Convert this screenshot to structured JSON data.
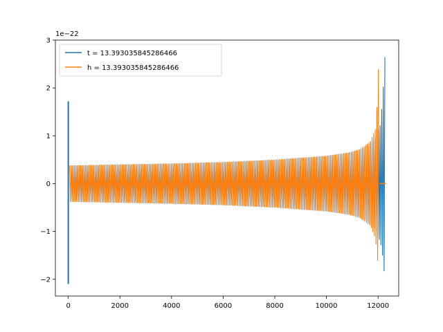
{
  "chart_data": {
    "type": "line",
    "title": "",
    "xlabel": "",
    "ylabel": "",
    "offset_text": "1e−22",
    "xlim": [
      -500,
      12800
    ],
    "ylim": [
      -2.35,
      3.0
    ],
    "x_ticks": [
      0,
      2000,
      4000,
      6000,
      8000,
      10000,
      12000
    ],
    "x_tick_labels": [
      "0",
      "2000",
      "4000",
      "6000",
      "8000",
      "10000",
      "12000"
    ],
    "y_ticks": [
      -2,
      -1,
      0,
      1,
      2,
      3
    ],
    "y_tick_labels": [
      "−2",
      "−1",
      "0",
      "1",
      "2",
      "3"
    ],
    "grid": false,
    "legend_placement": "top-left",
    "series": [
      {
        "name": "t = 13.393035845286466",
        "color": "#1f77b4",
        "spike_at_x": 0,
        "spike_range": [
          -2.1,
          1.72
        ],
        "envelope_x": [
          100,
          2000,
          4000,
          6000,
          8000,
          10000,
          11000,
          11500,
          11900,
          12100,
          12200,
          12280
        ],
        "envelope_upper": [
          0.38,
          0.4,
          0.42,
          0.45,
          0.5,
          0.58,
          0.66,
          0.76,
          0.95,
          1.25,
          2.0,
          2.8
        ],
        "envelope_lower": [
          -0.38,
          -0.4,
          -0.42,
          -0.45,
          -0.5,
          -0.58,
          -0.66,
          -0.76,
          -0.95,
          -1.25,
          -1.6,
          -2.15
        ],
        "end_x": 12300
      },
      {
        "name": "h = 13.393035845286466",
        "color": "#ff7f0e",
        "envelope_x": [
          50,
          2000,
          4000,
          6000,
          8000,
          9000,
          10000,
          10800,
          11300,
          11700,
          11900,
          12000,
          12030
        ],
        "envelope_upper": [
          0.38,
          0.4,
          0.42,
          0.45,
          0.5,
          0.54,
          0.58,
          0.64,
          0.72,
          0.88,
          1.15,
          2.0,
          2.8
        ],
        "envelope_lower": [
          -0.38,
          -0.4,
          -0.42,
          -0.45,
          -0.5,
          -0.54,
          -0.58,
          -0.64,
          -0.72,
          -0.88,
          -1.15,
          -1.7,
          -2.15
        ],
        "tail_x": [
          12050,
          12300
        ],
        "tail_value": 0.0
      }
    ]
  }
}
